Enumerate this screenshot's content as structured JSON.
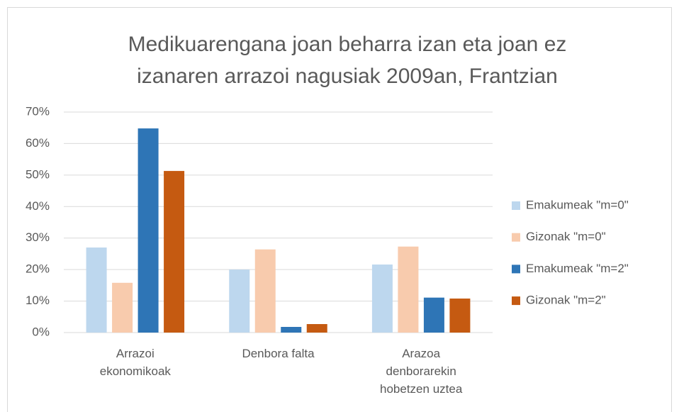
{
  "chart_data": {
    "type": "bar",
    "title": "Medikuarengana joan beharra izan eta joan ez izanaren arrazoi nagusiak 2009an, Frantzian",
    "categories": [
      "Arrazoi ekonomikoak",
      "Denbora falta",
      "Arazoa denborarekin hobetzen uztea"
    ],
    "series": [
      {
        "name": "Emakumeak \"m=0\"",
        "color": "#bdd7ee",
        "values": [
          27,
          20,
          21.6
        ]
      },
      {
        "name": "Gizonak \"m=0\"",
        "color": "#f8cbad",
        "values": [
          15.8,
          26.4,
          27.3
        ]
      },
      {
        "name": "Emakumeak \"m=2\"",
        "color": "#2e75b6",
        "values": [
          64.8,
          1.8,
          11.1
        ]
      },
      {
        "name": "Gizonak \"m=2\"",
        "color": "#c55a11",
        "values": [
          51.3,
          2.7,
          10.8
        ]
      }
    ],
    "ylim": [
      0,
      70
    ],
    "yticks": [
      {
        "value": 0,
        "label": "0%"
      },
      {
        "value": 10,
        "label": "10%"
      },
      {
        "value": 20,
        "label": "20%"
      },
      {
        "value": 30,
        "label": "30%"
      },
      {
        "value": 40,
        "label": "40%"
      },
      {
        "value": 50,
        "label": "50%"
      },
      {
        "value": 60,
        "label": "60%"
      },
      {
        "value": 70,
        "label": "70%"
      }
    ],
    "grid": true,
    "legend": "right"
  }
}
